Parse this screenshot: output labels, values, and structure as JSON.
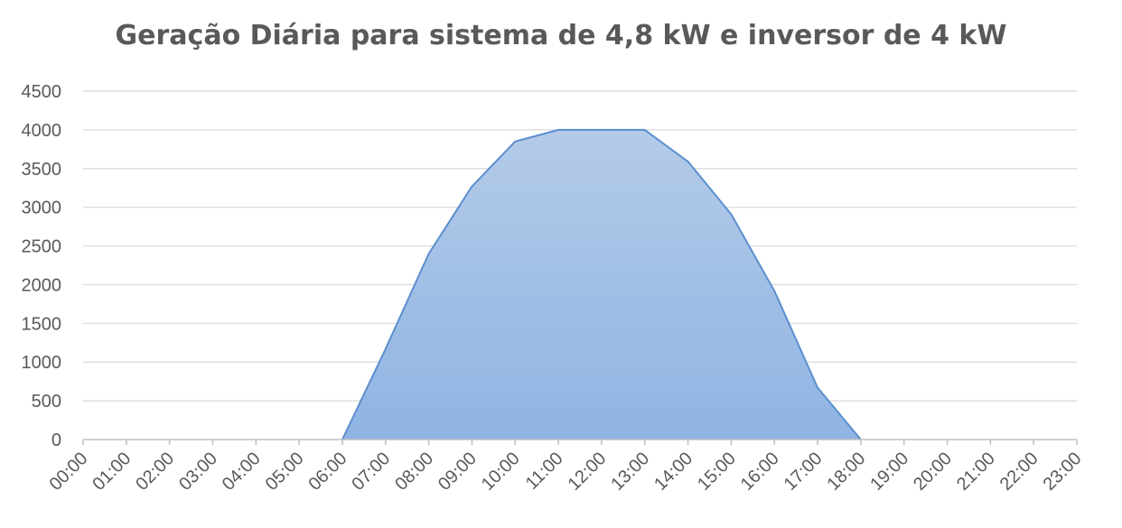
{
  "chart_data": {
    "type": "area",
    "title": "Geração Diária para sistema de 4,8 kW e inversor de 4 kW",
    "xlabel": "",
    "ylabel": "",
    "ylim": [
      0,
      4500
    ],
    "yticks": [
      0,
      500,
      1000,
      1500,
      2000,
      2500,
      3000,
      3500,
      4000,
      4500
    ],
    "grid": true,
    "legend": "none",
    "categories": [
      "00:00",
      "01:00",
      "02:00",
      "03:00",
      "04:00",
      "05:00",
      "06:00",
      "07:00",
      "08:00",
      "09:00",
      "10:00",
      "11:00",
      "12:00",
      "13:00",
      "14:00",
      "15:00",
      "16:00",
      "17:00",
      "18:00",
      "19:00",
      "20:00",
      "21:00",
      "22:00",
      "23:00"
    ],
    "series": [
      {
        "values": [
          null,
          null,
          null,
          null,
          null,
          null,
          0,
          1170,
          2400,
          3270,
          3850,
          4000,
          4000,
          4000,
          3590,
          2910,
          1920,
          670,
          0,
          null,
          null,
          null,
          null,
          null
        ]
      }
    ],
    "colors": {
      "fill_top": "#b4cbe8",
      "fill_bottom": "#8fb4e3",
      "line": "#5b8fcf",
      "grid": "#d9d9d9",
      "axis": "#bfbfbf",
      "text": "#595959"
    }
  }
}
